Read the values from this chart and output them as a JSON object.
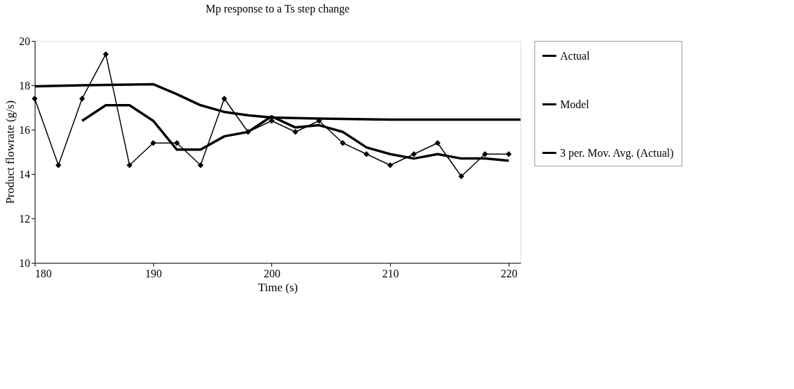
{
  "chart_data": {
    "type": "line",
    "title": "Mp response to a Ts step change",
    "xlabel": "Time (s)",
    "ylabel": "Product flowrate (g/s)",
    "xlim": [
      180,
      221
    ],
    "xticks": [
      180,
      190,
      200,
      210,
      220
    ],
    "ylim": [
      10,
      20
    ],
    "yticks": [
      10,
      12,
      14,
      16,
      18,
      20
    ],
    "grid": false,
    "legend": "right",
    "series": [
      {
        "name": "Actual",
        "color": "#000000",
        "marker": "diamond",
        "x": [
          180,
          182,
          184,
          186,
          188,
          190,
          192,
          194,
          196,
          198,
          200,
          202,
          204,
          206,
          208,
          210,
          212,
          214,
          216,
          218,
          220
        ],
        "values": [
          17.4,
          14.4,
          17.4,
          19.4,
          14.4,
          15.4,
          15.4,
          14.4,
          17.4,
          15.9,
          16.4,
          15.9,
          16.4,
          15.4,
          14.9,
          14.4,
          14.9,
          15.4,
          13.9,
          14.9,
          14.9
        ]
      },
      {
        "name": "Model",
        "color": "#000000",
        "marker": "none",
        "x": [
          180,
          184,
          190,
          192,
          194,
          196,
          198,
          200,
          204,
          210,
          221
        ],
        "values": [
          17.95,
          18.0,
          18.05,
          17.6,
          17.1,
          16.8,
          16.65,
          16.55,
          16.5,
          16.45,
          16.45
        ]
      },
      {
        "name": "3 per. Mov. Avg. (Actual)",
        "color": "#000000",
        "marker": "none",
        "x": [
          184,
          186,
          188,
          190,
          192,
          194,
          196,
          198,
          200,
          202,
          204,
          206,
          208,
          210,
          212,
          214,
          216,
          218,
          220
        ],
        "values": [
          16.4,
          17.1,
          17.1,
          16.4,
          15.1,
          15.1,
          15.7,
          15.9,
          16.6,
          16.1,
          16.2,
          15.9,
          15.2,
          14.9,
          14.7,
          14.9,
          14.7,
          14.7,
          14.6
        ]
      }
    ]
  }
}
